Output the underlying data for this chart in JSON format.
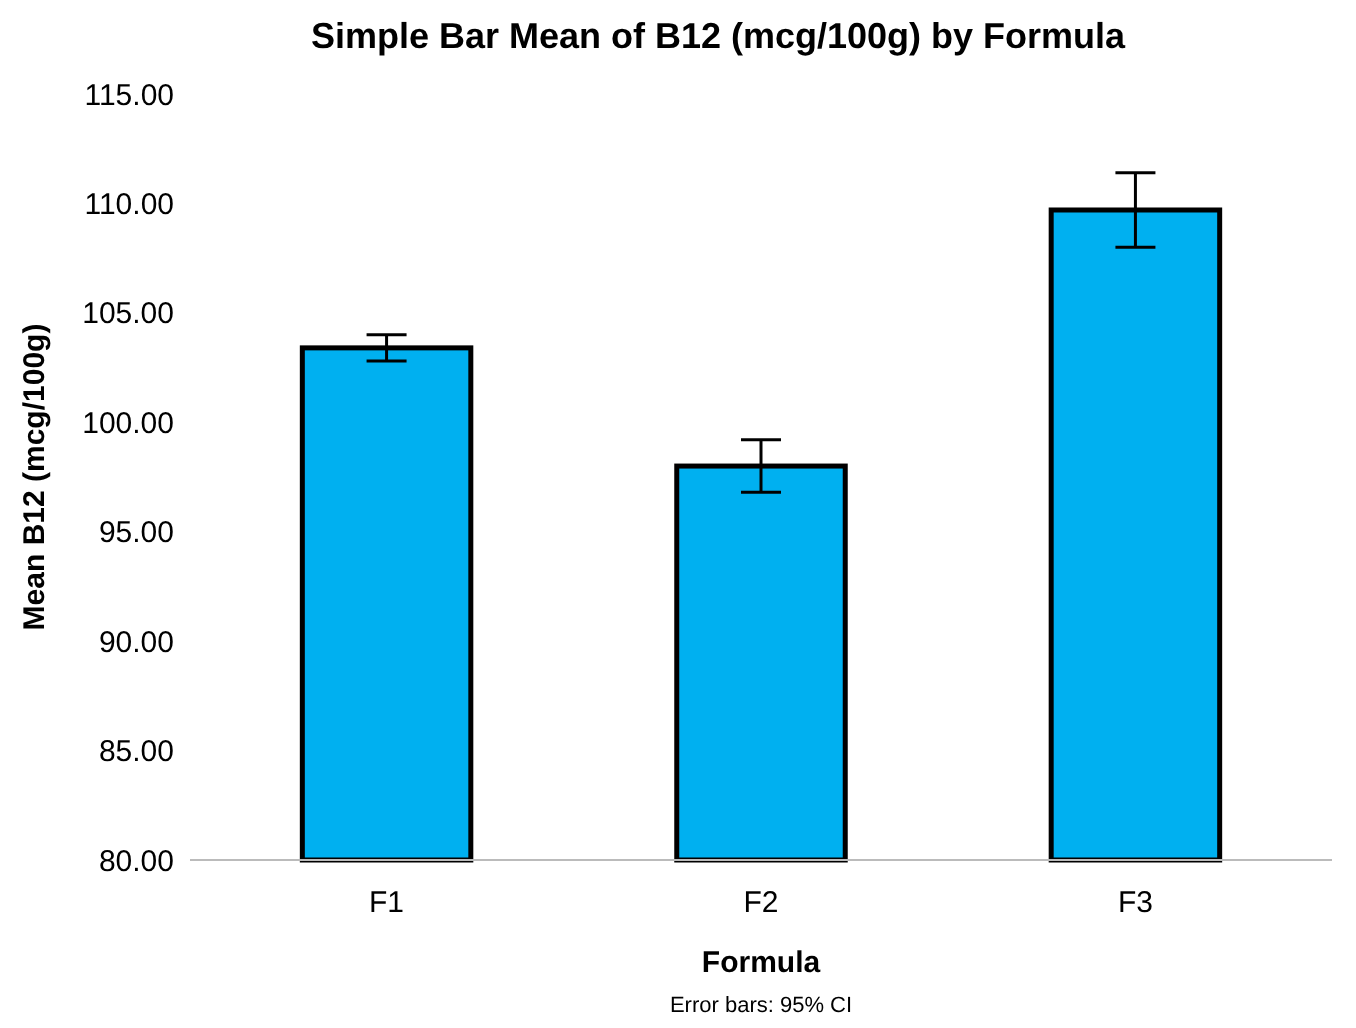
{
  "chart_data": {
    "type": "bar",
    "title": "Simple Bar Mean of B12 (mcg/100g) by Formula",
    "xlabel": "Formula",
    "ylabel": "Mean B12 (mcg/100g)",
    "categories": [
      "F1",
      "F2",
      "F3"
    ],
    "values": [
      103.4,
      98.0,
      109.7
    ],
    "errors": [
      0.6,
      1.2,
      1.7
    ],
    "color": "#00b0f0",
    "ylim": [
      80,
      115
    ],
    "yticks": [
      {
        "value": 80,
        "label": "80.00"
      },
      {
        "value": 85,
        "label": "85.00"
      },
      {
        "value": 90,
        "label": "90.00"
      },
      {
        "value": 95,
        "label": "95.00"
      },
      {
        "value": 100,
        "label": "100.00"
      },
      {
        "value": 105,
        "label": "105.00"
      },
      {
        "value": 110,
        "label": "110.00"
      },
      {
        "value": 115,
        "label": "115.00"
      }
    ],
    "grid": false,
    "annotations": [
      "Error bars: 95% CI"
    ]
  }
}
